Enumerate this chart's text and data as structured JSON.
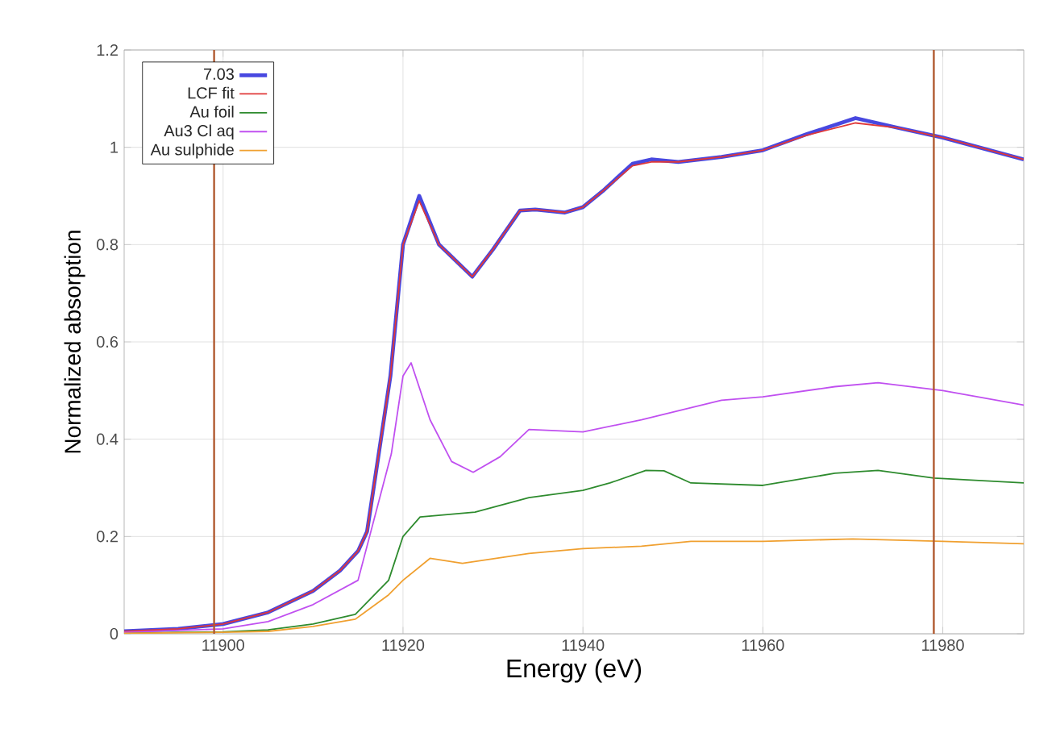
{
  "chart_data": {
    "type": "line",
    "xlabel": "Energy (eV)",
    "ylabel": "Normalized absorption",
    "xlim": [
      11889,
      11989
    ],
    "ylim": [
      0,
      1.2
    ],
    "xticks": [
      11900,
      11920,
      11940,
      11960,
      11980
    ],
    "yticks": [
      0,
      0.2,
      0.4,
      0.6,
      0.8,
      1,
      1.2
    ],
    "grid": true,
    "legend": "top left",
    "marker": "none",
    "line_style": "solid",
    "ref_lines": [
      {
        "axis": "x",
        "value": 11899,
        "color": "#b05a30"
      },
      {
        "axis": "x",
        "value": 11979,
        "color": "#b05a30"
      }
    ],
    "series": [
      {
        "name": "7.03",
        "color": "#4848e0",
        "x": [
          11889,
          11895,
          11900,
          11905,
          11910,
          11913,
          11915,
          11916,
          11918.6,
          11920,
          11921.8,
          11924,
          11927.7,
          11930,
          11933,
          11934.7,
          11938,
          11940,
          11942.2,
          11945.5,
          11947.6,
          11950.6,
          11955.4,
          11960,
          11964.9,
          11970.3,
          11975,
          11980,
          11989
        ],
        "values": [
          0.005,
          0.01,
          0.02,
          0.044,
          0.088,
          0.13,
          0.17,
          0.21,
          0.53,
          0.8,
          0.9,
          0.8,
          0.734,
          0.79,
          0.87,
          0.872,
          0.866,
          0.877,
          0.91,
          0.966,
          0.975,
          0.97,
          0.98,
          0.994,
          1.027,
          1.06,
          1.04,
          1.02,
          0.975
        ]
      },
      {
        "name": "LCF fit",
        "color": "#e03838",
        "x": [
          11889,
          11895,
          11900,
          11905,
          11910,
          11913,
          11915,
          11916,
          11918.6,
          11920,
          11921.8,
          11924,
          11927.7,
          11930,
          11933,
          11934.7,
          11938,
          11940,
          11942.2,
          11945.5,
          11947.6,
          11950.6,
          11955.4,
          11960,
          11964.9,
          11970.3,
          11975,
          11980,
          11989
        ],
        "values": [
          0.005,
          0.01,
          0.02,
          0.044,
          0.088,
          0.13,
          0.17,
          0.21,
          0.53,
          0.8,
          0.89,
          0.8,
          0.734,
          0.79,
          0.87,
          0.872,
          0.866,
          0.877,
          0.91,
          0.962,
          0.97,
          0.97,
          0.98,
          0.994,
          1.025,
          1.05,
          1.04,
          1.02,
          0.975
        ]
      },
      {
        "name": "Au foil",
        "color": "#2e8b2e",
        "x": [
          11889,
          11900,
          11905,
          11910,
          11914.7,
          11918.4,
          11920,
          11921.9,
          11928,
          11934,
          11940,
          11943,
          11947,
          11949,
          11952,
          11960,
          11968,
          11972.8,
          11979,
          11989
        ],
        "values": [
          0.002,
          0.004,
          0.008,
          0.02,
          0.04,
          0.11,
          0.2,
          0.24,
          0.25,
          0.28,
          0.295,
          0.31,
          0.336,
          0.335,
          0.31,
          0.305,
          0.33,
          0.336,
          0.32,
          0.31
        ]
      },
      {
        "name": "Au3 Cl aq",
        "color": "#c050f0",
        "x": [
          11889,
          11900,
          11905,
          11910,
          11915,
          11918.7,
          11920,
          11920.9,
          11923,
          11925.4,
          11927.8,
          11930.8,
          11934,
          11940,
          11946.5,
          11955.4,
          11960,
          11968,
          11972.8,
          11980,
          11989
        ],
        "values": [
          0.003,
          0.01,
          0.025,
          0.06,
          0.11,
          0.37,
          0.53,
          0.557,
          0.44,
          0.354,
          0.332,
          0.364,
          0.42,
          0.415,
          0.44,
          0.48,
          0.487,
          0.508,
          0.516,
          0.5,
          0.47
        ]
      },
      {
        "name": "Au sulphide",
        "color": "#f0a030",
        "x": [
          11889,
          11900,
          11905,
          11910,
          11914.7,
          11918.4,
          11920,
          11923,
          11926.6,
          11934,
          11940,
          11946.5,
          11952,
          11960,
          11970,
          11980,
          11989
        ],
        "values": [
          0.001,
          0.003,
          0.005,
          0.015,
          0.03,
          0.08,
          0.11,
          0.155,
          0.145,
          0.165,
          0.175,
          0.18,
          0.19,
          0.19,
          0.195,
          0.19,
          0.185
        ]
      }
    ]
  }
}
